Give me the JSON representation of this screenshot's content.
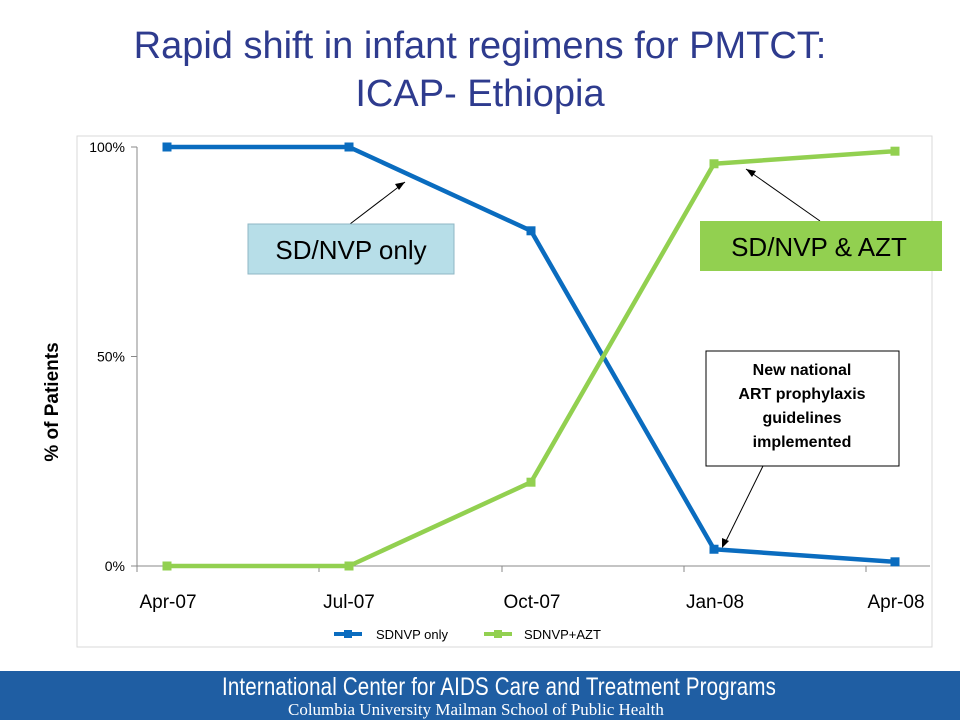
{
  "slide_title_line1": "Rapid shift in infant regimens for PMTCT:",
  "slide_title_line2": "ICAP- Ethiopia",
  "footer": {
    "line1": "International Center for AIDS Care and Treatment Programs",
    "line2": "Columbia University Mailman School of Public Health"
  },
  "chart_data": {
    "type": "line",
    "title": "",
    "xlabel": "",
    "ylabel": "% of Patients",
    "categories": [
      "Apr-07",
      "Jul-07",
      "Oct-07",
      "Jan-08",
      "Apr-08"
    ],
    "y_ticks": [
      "0%",
      "50%",
      "100%"
    ],
    "ylim": [
      0,
      100
    ],
    "grid": false,
    "legend_position": "bottom",
    "series": [
      {
        "name": "SDNVP only",
        "values": [
          100,
          100,
          80,
          4,
          1
        ],
        "color": "#0a6cbf"
      },
      {
        "name": "SDNVP+AZT",
        "values": [
          0,
          0,
          20,
          96,
          99
        ],
        "color": "#92d050"
      }
    ],
    "callouts": [
      {
        "text": "SD/NVP only",
        "fill": "#b7dee8",
        "series": 0
      },
      {
        "text": "SD/NVP & AZT",
        "fill": "#92d050",
        "series": 1
      }
    ],
    "annotation": {
      "lines": [
        "New national",
        "ART prophylaxis",
        "guidelines",
        "implemented"
      ]
    }
  }
}
